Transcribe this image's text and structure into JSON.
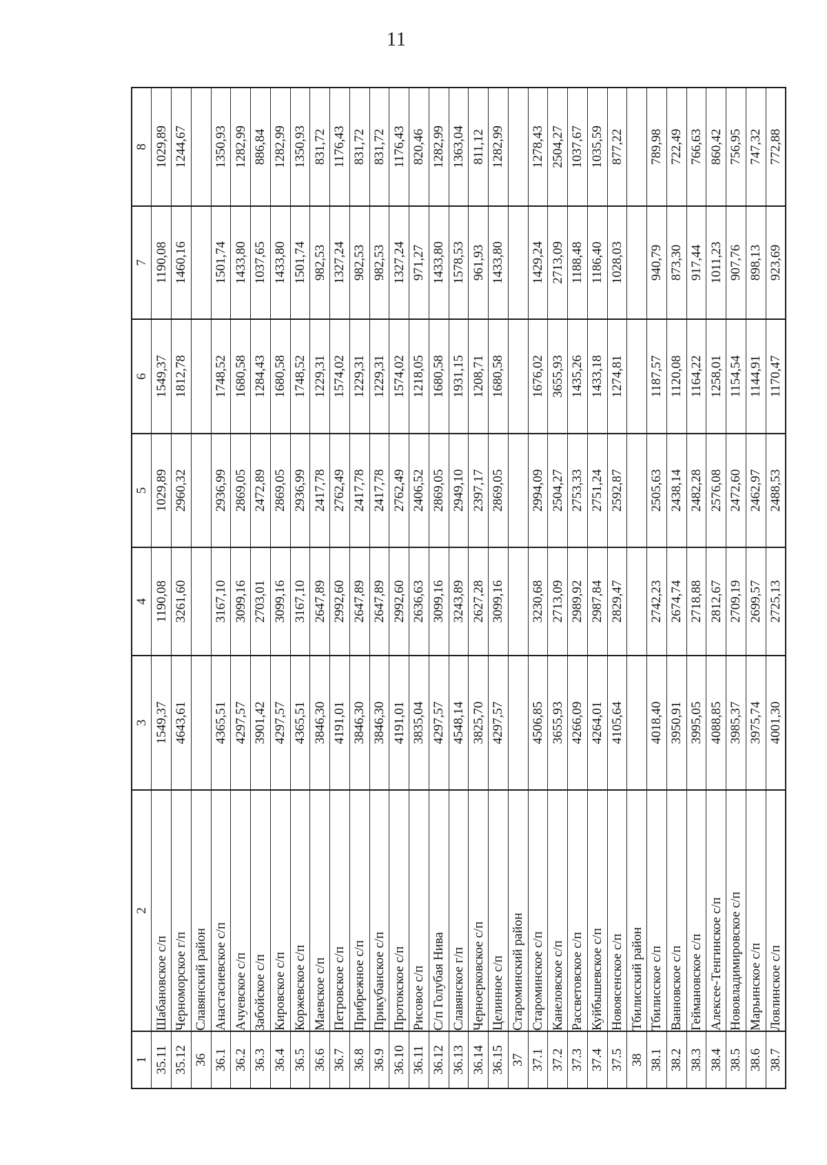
{
  "page": {
    "number": "11"
  },
  "table": {
    "column_headers": [
      "1",
      "2",
      "3",
      "4",
      "5",
      "6",
      "7",
      "8"
    ],
    "rows": [
      {
        "num": "35.11",
        "name": "Шабановское с/п",
        "is_section": false,
        "values": [
          "1549,37",
          "1190,08",
          "1029,89",
          "1549,37",
          "1190,08",
          "1029,89"
        ]
      },
      {
        "num": "35.12",
        "name": "Черноморское г/п",
        "is_section": false,
        "values": [
          "4643,61",
          "3261,60",
          "2960,32",
          "1812,78",
          "1460,16",
          "1244,67"
        ]
      },
      {
        "num": "36",
        "name": "Славянский район",
        "is_section": true,
        "values": [
          "",
          "",
          "",
          "",
          "",
          ""
        ]
      },
      {
        "num": "36.1",
        "name": "Анастасиевское с/п",
        "is_section": false,
        "values": [
          "4365,51",
          "3167,10",
          "2936,99",
          "1748,52",
          "1501,74",
          "1350,93"
        ]
      },
      {
        "num": "36.2",
        "name": "Ачуевское с/п",
        "is_section": false,
        "values": [
          "4297,57",
          "3099,16",
          "2869,05",
          "1680,58",
          "1433,80",
          "1282,99"
        ]
      },
      {
        "num": "36.3",
        "name": "Забойское с/п",
        "is_section": false,
        "values": [
          "3901,42",
          "2703,01",
          "2472,89",
          "1284,43",
          "1037,65",
          "886,84"
        ]
      },
      {
        "num": "36.4",
        "name": "Кировское с/п",
        "is_section": false,
        "values": [
          "4297,57",
          "3099,16",
          "2869,05",
          "1680,58",
          "1433,80",
          "1282,99"
        ]
      },
      {
        "num": "36.5",
        "name": "Коржевское с/п",
        "is_section": false,
        "values": [
          "4365,51",
          "3167,10",
          "2936,99",
          "1748,52",
          "1501,74",
          "1350,93"
        ]
      },
      {
        "num": "36.6",
        "name": "Маевское с/п",
        "is_section": false,
        "values": [
          "3846,30",
          "2647,89",
          "2417,78",
          "1229,31",
          "982,53",
          "831,72"
        ]
      },
      {
        "num": "36.7",
        "name": "Петровское с/п",
        "is_section": false,
        "values": [
          "4191,01",
          "2992,60",
          "2762,49",
          "1574,02",
          "1327,24",
          "1176,43"
        ]
      },
      {
        "num": "36.8",
        "name": "Прибрежное с/п",
        "is_section": false,
        "values": [
          "3846,30",
          "2647,89",
          "2417,78",
          "1229,31",
          "982,53",
          "831,72"
        ]
      },
      {
        "num": "36.9",
        "name": "Прикубанское с/п",
        "is_section": false,
        "values": [
          "3846,30",
          "2647,89",
          "2417,78",
          "1229,31",
          "982,53",
          "831,72"
        ]
      },
      {
        "num": "36.10",
        "name": "Протокское с/п",
        "is_section": false,
        "values": [
          "4191,01",
          "2992,60",
          "2762,49",
          "1574,02",
          "1327,24",
          "1176,43"
        ]
      },
      {
        "num": "36.11",
        "name": "Рисовое с/п",
        "is_section": false,
        "values": [
          "3835,04",
          "2636,63",
          "2406,52",
          "1218,05",
          "971,27",
          "820,46"
        ]
      },
      {
        "num": "36.12",
        "name": "С/п Голубая Нива",
        "is_section": false,
        "values": [
          "4297,57",
          "3099,16",
          "2869,05",
          "1680,58",
          "1433,80",
          "1282,99"
        ]
      },
      {
        "num": "36.13",
        "name": "Славянское г/п",
        "is_section": false,
        "values": [
          "4548,14",
          "3243,89",
          "2949,10",
          "1931,15",
          "1578,53",
          "1363,04"
        ]
      },
      {
        "num": "36.14",
        "name": "Черноерковское с/п",
        "is_section": false,
        "values": [
          "3825,70",
          "2627,28",
          "2397,17",
          "1208,71",
          "961,93",
          "811,12"
        ]
      },
      {
        "num": "36.15",
        "name": "Целинное с/п",
        "is_section": false,
        "values": [
          "4297,57",
          "3099,16",
          "2869,05",
          "1680,58",
          "1433,80",
          "1282,99"
        ]
      },
      {
        "num": "37",
        "name": "Староминский район",
        "is_section": true,
        "values": [
          "",
          "",
          "",
          "",
          "",
          ""
        ]
      },
      {
        "num": "37.1",
        "name": "Староминское с/п",
        "is_section": false,
        "values": [
          "4506,85",
          "3230,68",
          "2994,09",
          "1676,02",
          "1429,24",
          "1278,43"
        ]
      },
      {
        "num": "37.2",
        "name": "Канеловское с/п",
        "is_section": false,
        "values": [
          "3655,93",
          "2713,09",
          "2504,27",
          "3655,93",
          "2713,09",
          "2504,27"
        ]
      },
      {
        "num": "37.3",
        "name": "Рассветовское с/п",
        "is_section": false,
        "values": [
          "4266,09",
          "2989,92",
          "2753,33",
          "1435,26",
          "1188,48",
          "1037,67"
        ]
      },
      {
        "num": "37.4",
        "name": "Куйбышевское с/п",
        "is_section": false,
        "values": [
          "4264,01",
          "2987,84",
          "2751,24",
          "1433,18",
          "1186,40",
          "1035,59"
        ]
      },
      {
        "num": "37.5",
        "name": "Новоясенское с/п",
        "is_section": false,
        "values": [
          "4105,64",
          "2829,47",
          "2592,87",
          "1274,81",
          "1028,03",
          "877,22"
        ]
      },
      {
        "num": "38",
        "name": "Тбилисский район",
        "is_section": true,
        "values": [
          "",
          "",
          "",
          "",
          "",
          ""
        ]
      },
      {
        "num": "38.1",
        "name": "Тбилисское с/п",
        "is_section": false,
        "values": [
          "4018,40",
          "2742,23",
          "2505,63",
          "1187,57",
          "940,79",
          "789,98"
        ]
      },
      {
        "num": "38.2",
        "name": "Ванновское с/п",
        "is_section": false,
        "values": [
          "3950,91",
          "2674,74",
          "2438,14",
          "1120,08",
          "873,30",
          "722,49"
        ]
      },
      {
        "num": "38.3",
        "name": "Геймановское с/п",
        "is_section": false,
        "values": [
          "3995,05",
          "2718,88",
          "2482,28",
          "1164,22",
          "917,44",
          "766,63"
        ]
      },
      {
        "num": "38.4",
        "name": "Алексее-Тенгинское с/п",
        "is_section": false,
        "values": [
          "4088,85",
          "2812,67",
          "2576,08",
          "1258,01",
          "1011,23",
          "860,42"
        ]
      },
      {
        "num": "38.5",
        "name": "Нововладимировское с/п",
        "is_section": false,
        "values": [
          "3985,37",
          "2709,19",
          "2472,60",
          "1154,54",
          "907,76",
          "756,95"
        ]
      },
      {
        "num": "38.6",
        "name": "Марьинское с/п",
        "is_section": false,
        "values": [
          "3975,74",
          "2699,57",
          "2462,97",
          "1144,91",
          "898,13",
          "747,32"
        ]
      },
      {
        "num": "38.7",
        "name": "Ловлинское с/п",
        "is_section": false,
        "values": [
          "4001,30",
          "2725,13",
          "2488,53",
          "1170,47",
          "923,69",
          "772,88"
        ]
      }
    ]
  }
}
